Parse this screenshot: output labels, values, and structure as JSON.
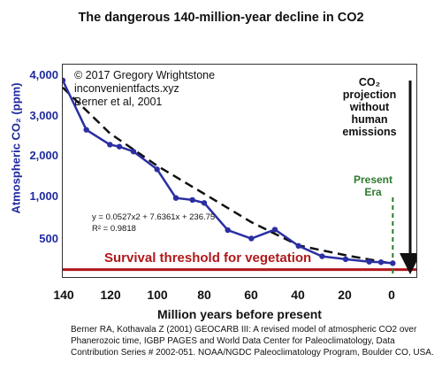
{
  "title": "The dangerous 140-million-year decline in CO2",
  "credits": [
    "© 2017 Gregory Wrightstone",
    "inconvenientfacts.xyz",
    "Berner et al, 2001"
  ],
  "annotations": {
    "projection": [
      "CO₂",
      "projection",
      "without",
      "human",
      "emissions"
    ],
    "present_era": [
      "Present",
      "Era"
    ],
    "survival": "Survival threshold for vegetation",
    "equation": [
      "y = 0.0527x2 + 7.6361x + 236.75",
      "R² = 0.9818"
    ]
  },
  "citation": "Berner RA, Kothavala Z (2001) GEOCARB III: A revised model of atmospheric CO2 over Phanerozoic time, IGBP PAGES and World Data Center for Paleoclimatology, Data Contribution Series # 2002-051. NOAA/NGDC Paleoclimatology Program, Boulder CO, USA.",
  "colors": {
    "series": "#2b2fa3",
    "trend": "#111111",
    "threshold": "#b0181b",
    "present_marker": "#2d7a2d",
    "axis_label": "#1f2aa0"
  },
  "chart_data": {
    "type": "line",
    "title": "The dangerous 140-million-year decline in CO2",
    "xlabel": "Million years before present",
    "ylabel": "Atmospheric CO₂ (ppm)",
    "x_reversed": true,
    "xlim": [
      140,
      -10
    ],
    "ylim": [
      0,
      4300
    ],
    "x_ticks": [
      "140",
      "120",
      "100",
      "80",
      "60",
      "40",
      "20",
      "0"
    ],
    "x_tick_values": [
      140,
      120,
      100,
      80,
      60,
      40,
      20,
      0
    ],
    "y_ticks": [
      "500",
      "1,000",
      "2,000",
      "3,000",
      "4,000"
    ],
    "y_tick_values": [
      500,
      1000,
      2000,
      3000,
      4000
    ],
    "grid": false,
    "series": [
      {
        "x": [
          140,
          130,
          120,
          116,
          110,
          100,
          92,
          85,
          80,
          70,
          60,
          50,
          40,
          30,
          20,
          10,
          5,
          0
        ],
        "y": [
          3980,
          2980,
          2680,
          2640,
          2540,
          2180,
          1600,
          1560,
          1500,
          950,
          780,
          960,
          630,
          420,
          360,
          310,
          300,
          280
        ]
      }
    ],
    "trendline": {
      "x": [
        140,
        120,
        100,
        80,
        60,
        40,
        20,
        0
      ],
      "y": [
        3836,
        2909,
        2254,
        1684,
        1110,
        640,
        440,
        270
      ]
    },
    "reference_lines": [
      {
        "axis": "y",
        "value": 150,
        "label": "Survival threshold for vegetation"
      },
      {
        "axis": "x",
        "value": 0,
        "label": "Present Era"
      }
    ]
  }
}
